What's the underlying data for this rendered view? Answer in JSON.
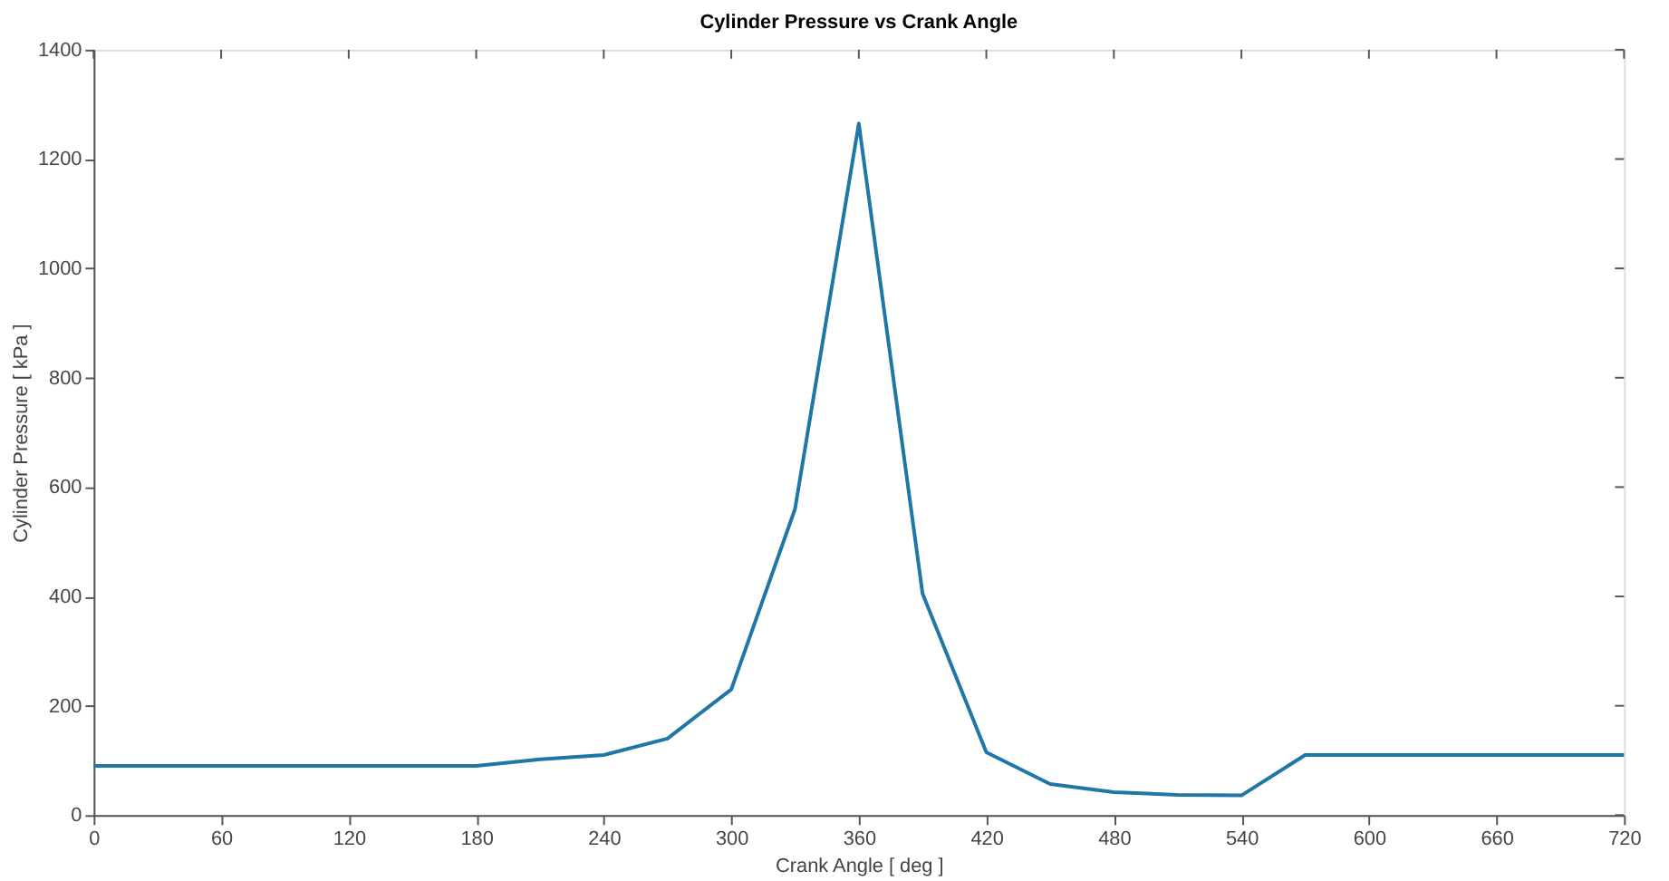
{
  "chart_data": {
    "type": "line",
    "title": "Cylinder Pressure vs Crank Angle",
    "xlabel": "Crank Angle [ deg ]",
    "ylabel": "Cylinder Pressure [ kPa ]",
    "x": [
      0,
      30,
      60,
      90,
      120,
      150,
      180,
      210,
      240,
      270,
      300,
      330,
      360,
      390,
      420,
      450,
      480,
      510,
      540,
      570,
      600,
      630,
      660,
      690,
      720
    ],
    "series": [
      {
        "color": "#1f77a8",
        "values": [
          90,
          90,
          90,
          90,
          90,
          90,
          90,
          102,
          110,
          140,
          230,
          560,
          1265,
          405,
          115,
          57,
          42,
          37,
          36,
          110,
          110,
          110,
          110,
          110,
          110
        ]
      }
    ],
    "xlim": [
      0,
      720
    ],
    "xticks": [
      0,
      60,
      120,
      180,
      240,
      300,
      360,
      420,
      480,
      540,
      600,
      660,
      720
    ],
    "ylim": [
      0,
      1400
    ],
    "yticks": [
      0,
      200,
      400,
      600,
      800,
      1000,
      1200,
      1400
    ],
    "grid": false,
    "legend": false,
    "marker": "none",
    "line_style": "solid"
  }
}
